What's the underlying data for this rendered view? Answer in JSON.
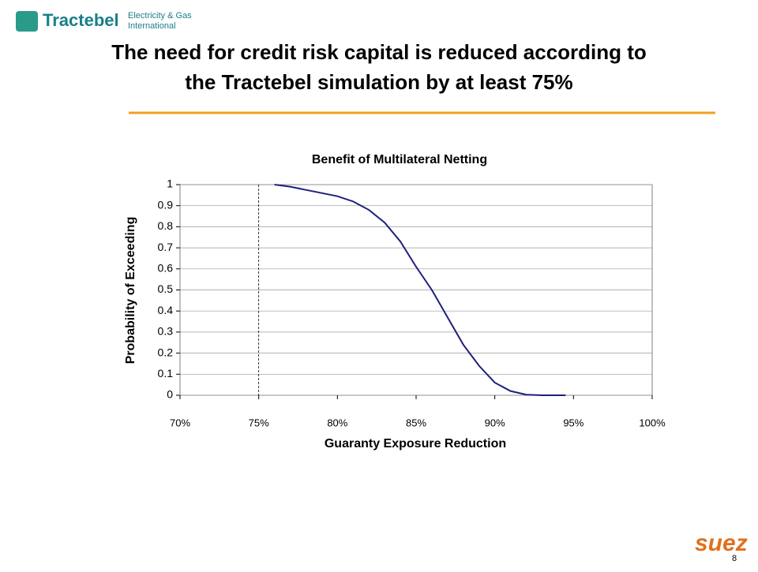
{
  "header": {
    "logo_name": "Tractebel",
    "logo_line1": "Electricity & Gas",
    "logo_line2": "International",
    "title_line1": "The need for credit risk capital is reduced according to",
    "title_line2": "the Tractebel simulation by at least 75%"
  },
  "chart_data": {
    "type": "line",
    "title": "Benefit of Multilateral Netting",
    "xlabel": "Guaranty Exposure Reduction",
    "ylabel": "Probability of Exceeding",
    "x": [
      76,
      77,
      78,
      79,
      80,
      81,
      82,
      83,
      84,
      85,
      86,
      87,
      88,
      89,
      90,
      91,
      92,
      93,
      94.5
    ],
    "series": [
      {
        "name": "Probability of Exceeding",
        "color": "#1f1f7a",
        "values": [
          1.0,
          0.99,
          0.975,
          0.96,
          0.945,
          0.92,
          0.88,
          0.82,
          0.73,
          0.61,
          0.5,
          0.37,
          0.24,
          0.14,
          0.06,
          0.02,
          0.003,
          0,
          0
        ]
      }
    ],
    "reference_line_x": 75,
    "xlim": [
      70,
      100
    ],
    "xticks": [
      {
        "value": 70,
        "label": "70%"
      },
      {
        "value": 75,
        "label": "75%"
      },
      {
        "value": 80,
        "label": "80%"
      },
      {
        "value": 85,
        "label": "85%"
      },
      {
        "value": 90,
        "label": "90%"
      },
      {
        "value": 95,
        "label": "95%"
      },
      {
        "value": 100,
        "label": "100%"
      }
    ],
    "ylim": [
      0,
      1
    ],
    "yticks": [
      0,
      0.1,
      0.2,
      0.3,
      0.4,
      0.5,
      0.6,
      0.7,
      0.8,
      0.9,
      1
    ],
    "grid": true
  },
  "footer": {
    "brand": "suez",
    "page_number": "8"
  }
}
